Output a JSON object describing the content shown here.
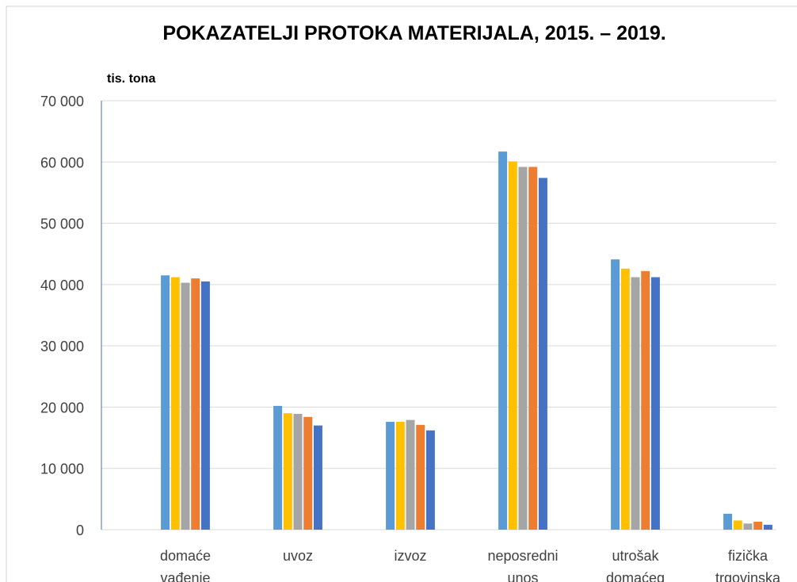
{
  "chart_data": {
    "type": "bar",
    "title": "POKAZATELJI PROTOKA MATERIJALA, 2015. – 2019.",
    "y_label": "tis. tona",
    "categories": [
      "domaće vađenje",
      "uvoz",
      "izvoz",
      "neposredni unos",
      "utrošak domaćeg",
      "fizička trgovinska"
    ],
    "series": [
      {
        "color": "#5b9bd5",
        "values": [
          41500,
          20200,
          17600,
          61700,
          44100,
          2600
        ]
      },
      {
        "color": "#ffc000",
        "values": [
          41200,
          19000,
          17600,
          60100,
          42600,
          1500
        ]
      },
      {
        "color": "#a5a5a5",
        "values": [
          40300,
          18900,
          17900,
          59200,
          41200,
          1000
        ]
      },
      {
        "color": "#ed7d31",
        "values": [
          41000,
          18400,
          17100,
          59200,
          42200,
          1300
        ]
      },
      {
        "color": "#4472c4",
        "values": [
          40500,
          17000,
          16200,
          57400,
          41200,
          800
        ]
      }
    ],
    "ylim": [
      0,
      70000
    ],
    "yticks": [
      0,
      {
        "value": 10000,
        "label": "10 000"
      },
      {
        "value": 20000,
        "label": "20 000"
      },
      {
        "value": 30000,
        "label": "30 000"
      },
      {
        "value": 40000,
        "label": "40 000"
      },
      {
        "value": 50000,
        "label": "50 000"
      },
      {
        "value": 60000,
        "label": "60 000"
      },
      {
        "value": 70000,
        "label": "70 000"
      }
    ],
    "grid": true
  }
}
